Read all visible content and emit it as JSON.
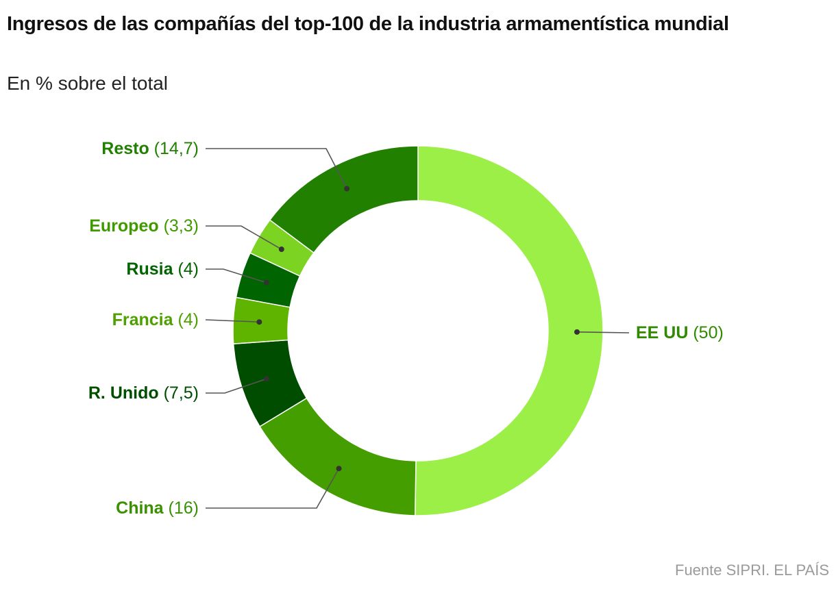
{
  "title": "Ingresos de las compañías del top-100 de la industria armamentística mundial",
  "subtitle": "En % sobre el total",
  "source": "Fuente SIPRI. EL PAÍS",
  "chart_data": {
    "type": "pie",
    "variant": "donut",
    "title": "Ingresos de las compañías del top-100 de la industria armamentística mundial",
    "subtitle": "En % sobre el total",
    "slices": [
      {
        "name": "EE UU",
        "value": 50,
        "value_label": "(50)",
        "color": "#9bef46",
        "text_color": "#2f8a00"
      },
      {
        "name": "China",
        "value": 16,
        "value_label": "(16)",
        "color": "#459e00",
        "text_color": "#3a9000"
      },
      {
        "name": "R. Unido",
        "value": 7.5,
        "value_label": "(7,5)",
        "color": "#004d00",
        "text_color": "#004d00"
      },
      {
        "name": "Francia",
        "value": 4,
        "value_label": "(4)",
        "color": "#5fb400",
        "text_color": "#4ea000"
      },
      {
        "name": "Rusia",
        "value": 4,
        "value_label": "(4)",
        "color": "#006400",
        "text_color": "#006400"
      },
      {
        "name": "Europeo",
        "value": 3.3,
        "value_label": "(3,3)",
        "color": "#7dd321",
        "text_color": "#3f9a00"
      },
      {
        "name": "Resto",
        "value": 14.7,
        "value_label": "(14,7)",
        "color": "#228000",
        "text_color": "#228000"
      }
    ]
  }
}
